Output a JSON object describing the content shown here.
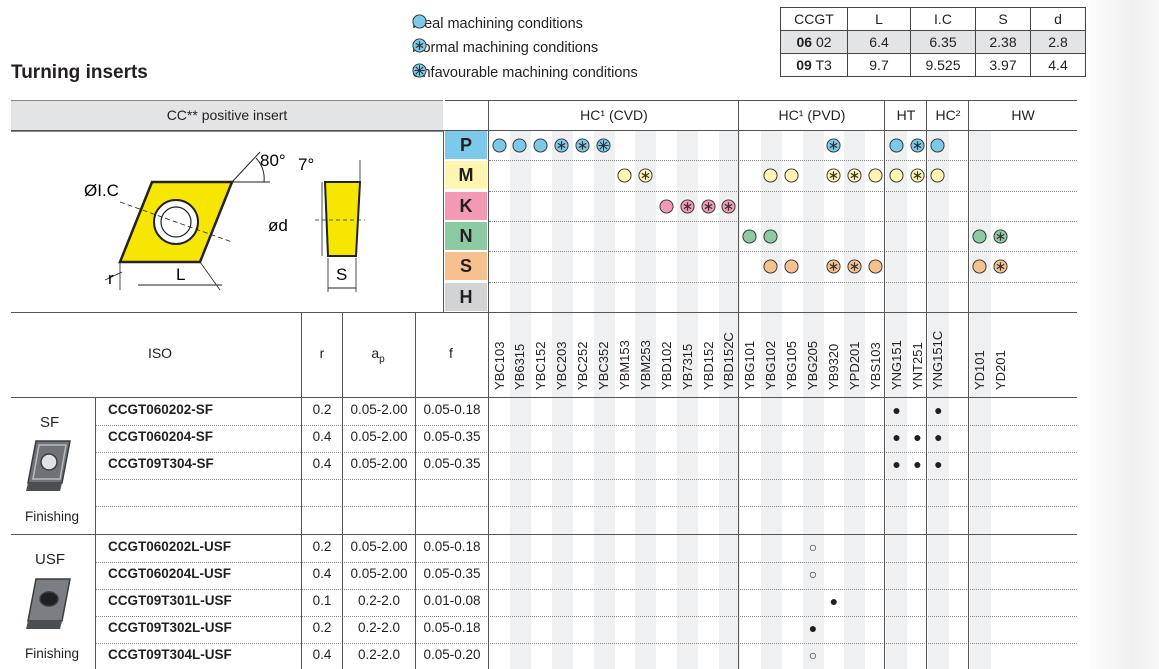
{
  "title": "Turning inserts",
  "legend": [
    {
      "icon": "ideal-circle-icon",
      "label": "Ideal machining conditions"
    },
    {
      "icon": "normal-circle-icon",
      "label": "Normal machining conditions"
    },
    {
      "icon": "unfavourable-circle-icon",
      "label": "Unfavourable machining conditions"
    }
  ],
  "dims": {
    "headers": [
      "CCGT",
      "L",
      "I.C",
      "S",
      "d"
    ],
    "rows": [
      {
        "size_bold": "06",
        "size_suffix": "02",
        "L": "6.4",
        "IC": "6.35",
        "S": "2.38",
        "d": "2.8"
      },
      {
        "size_bold": "09",
        "size_suffix": "T3",
        "L": "9.7",
        "IC": "9.525",
        "S": "3.97",
        "d": "4.4"
      }
    ]
  },
  "insert_label": "CC** positive insert",
  "drawing": {
    "angle1": "80°",
    "angle2": "7°",
    "ic": "ØI.C",
    "d": "ød",
    "r": "r",
    "L": "L",
    "S": "S"
  },
  "groups": [
    {
      "label": "HC¹ (CVD)"
    },
    {
      "label": "HC¹ (PVD)"
    },
    {
      "label": "HT"
    },
    {
      "label": "HC²"
    },
    {
      "label": "HW"
    }
  ],
  "materials": [
    {
      "letter": "P",
      "color": "#7dc9ea"
    },
    {
      "letter": "M",
      "color": "#fdf5b0"
    },
    {
      "letter": "K",
      "color": "#f29ab4"
    },
    {
      "letter": "N",
      "color": "#8ccaa4"
    },
    {
      "letter": "S",
      "color": "#f7c18f"
    },
    {
      "letter": "H",
      "color": "#d2d3d5"
    }
  ],
  "grades": [
    "YBC103",
    "YB6315",
    "YBC152",
    "YBC203",
    "YBC252",
    "YBC352",
    "YBM153",
    "YBM253",
    "YBD102",
    "YB7315",
    "YBD152",
    "YBD152C",
    "YBG101",
    "YBG102",
    "YBG105",
    "YBG205",
    "YB9320",
    "YPD201",
    "YBS103",
    "YNG151",
    "YNT251",
    "YNG151C",
    "",
    "YD101",
    "YD201"
  ],
  "symbols": [
    {
      "row": 0,
      "col": 0,
      "kind": "ideal"
    },
    {
      "row": 0,
      "col": 1,
      "kind": "ideal"
    },
    {
      "row": 0,
      "col": 2,
      "kind": "ideal"
    },
    {
      "row": 0,
      "col": 3,
      "kind": "normal"
    },
    {
      "row": 0,
      "col": 4,
      "kind": "normal"
    },
    {
      "row": 0,
      "col": 5,
      "kind": "unfav"
    },
    {
      "row": 0,
      "col": 16,
      "kind": "normal"
    },
    {
      "row": 0,
      "col": 19,
      "kind": "ideal"
    },
    {
      "row": 0,
      "col": 20,
      "kind": "normal"
    },
    {
      "row": 0,
      "col": 21,
      "kind": "ideal"
    },
    {
      "row": 1,
      "col": 6,
      "kind": "ideal"
    },
    {
      "row": 1,
      "col": 7,
      "kind": "normal"
    },
    {
      "row": 1,
      "col": 13,
      "kind": "ideal"
    },
    {
      "row": 1,
      "col": 14,
      "kind": "ideal"
    },
    {
      "row": 1,
      "col": 16,
      "kind": "normal"
    },
    {
      "row": 1,
      "col": 17,
      "kind": "normal"
    },
    {
      "row": 1,
      "col": 18,
      "kind": "ideal"
    },
    {
      "row": 1,
      "col": 19,
      "kind": "ideal"
    },
    {
      "row": 1,
      "col": 20,
      "kind": "normal"
    },
    {
      "row": 1,
      "col": 21,
      "kind": "ideal"
    },
    {
      "row": 2,
      "col": 8,
      "kind": "ideal"
    },
    {
      "row": 2,
      "col": 9,
      "kind": "normal"
    },
    {
      "row": 2,
      "col": 10,
      "kind": "normal"
    },
    {
      "row": 2,
      "col": 11,
      "kind": "normal"
    },
    {
      "row": 3,
      "col": 12,
      "kind": "ideal"
    },
    {
      "row": 3,
      "col": 13,
      "kind": "ideal"
    },
    {
      "row": 3,
      "col": 23,
      "kind": "ideal"
    },
    {
      "row": 3,
      "col": 24,
      "kind": "normal"
    },
    {
      "row": 4,
      "col": 13,
      "kind": "ideal"
    },
    {
      "row": 4,
      "col": 14,
      "kind": "ideal"
    },
    {
      "row": 4,
      "col": 16,
      "kind": "normal"
    },
    {
      "row": 4,
      "col": 17,
      "kind": "normal"
    },
    {
      "row": 4,
      "col": 18,
      "kind": "ideal"
    },
    {
      "row": 4,
      "col": 23,
      "kind": "ideal"
    },
    {
      "row": 4,
      "col": 24,
      "kind": "normal"
    }
  ],
  "table_headers": {
    "iso": "ISO",
    "r": "r",
    "ap": "a",
    "ap_sub": "p",
    "f": "f"
  },
  "chipbreakers": [
    {
      "name": "SF",
      "application": "Finishing"
    },
    {
      "name": "USF",
      "application": "Finishing"
    }
  ],
  "rows": [
    {
      "iso": "CCGT060202-SF",
      "r": "0.2",
      "ap": "0.05-2.00",
      "f": "0.05-0.18",
      "marks": [
        {
          "col": 19,
          "m": "●"
        },
        {
          "col": 21,
          "m": "●"
        }
      ]
    },
    {
      "iso": "CCGT060204-SF",
      "r": "0.4",
      "ap": "0.05-2.00",
      "f": "0.05-0.35",
      "marks": [
        {
          "col": 19,
          "m": "●"
        },
        {
          "col": 20,
          "m": "●"
        },
        {
          "col": 21,
          "m": "●"
        }
      ]
    },
    {
      "iso": "CCGT09T304-SF",
      "r": "0.4",
      "ap": "0.05-2.00",
      "f": "0.05-0.35",
      "marks": [
        {
          "col": 19,
          "m": "●"
        },
        {
          "col": 20,
          "m": "●"
        },
        {
          "col": 21,
          "m": "●"
        }
      ]
    },
    {
      "iso": "",
      "r": "",
      "ap": "",
      "f": "",
      "marks": []
    },
    {
      "iso": "",
      "r": "",
      "ap": "",
      "f": "",
      "marks": []
    },
    {
      "iso": "CCGT060202L-USF",
      "r": "0.2",
      "ap": "0.05-2.00",
      "f": "0.05-0.18",
      "marks": [
        {
          "col": 15,
          "m": "○"
        }
      ]
    },
    {
      "iso": "CCGT060204L-USF",
      "r": "0.4",
      "ap": "0.05-2.00",
      "f": "0.05-0.35",
      "marks": [
        {
          "col": 15,
          "m": "○"
        }
      ]
    },
    {
      "iso": "CCGT09T301L-USF",
      "r": "0.1",
      "ap": "0.2-2.0",
      "f": "0.01-0.08",
      "marks": [
        {
          "col": 16,
          "m": "●"
        }
      ]
    },
    {
      "iso": "CCGT09T302L-USF",
      "r": "0.2",
      "ap": "0.2-2.0",
      "f": "0.05-0.18",
      "marks": [
        {
          "col": 15,
          "m": "●"
        }
      ]
    },
    {
      "iso": "CCGT09T304L-USF",
      "r": "0.4",
      "ap": "0.2-2.0",
      "f": "0.05-0.20",
      "marks": [
        {
          "col": 15,
          "m": "○"
        }
      ]
    }
  ]
}
